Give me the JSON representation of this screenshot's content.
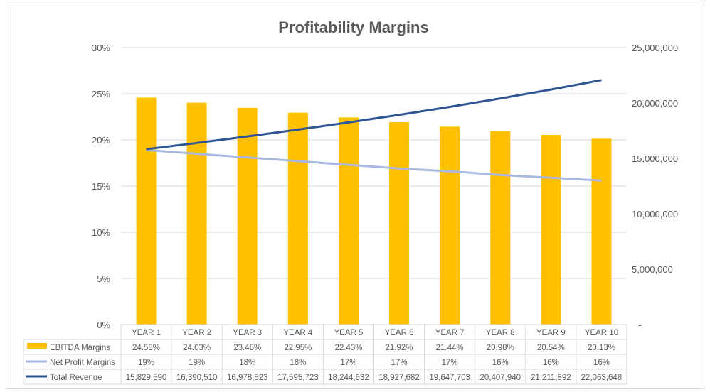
{
  "chart_data": {
    "type": "bar",
    "title": "Profitability Margins",
    "categories": [
      "YEAR 1",
      "YEAR 2",
      "YEAR 3",
      "YEAR 4",
      "YEAR 5",
      "YEAR 6",
      "YEAR 7",
      "YEAR 8",
      "YEAR 9",
      "YEAR 10"
    ],
    "left_axis": {
      "ylim": [
        0,
        30
      ],
      "ticks": [
        "0%",
        "5%",
        "10%",
        "15%",
        "20%",
        "25%",
        "30%"
      ]
    },
    "right_axis": {
      "ylim": [
        0,
        25000000
      ],
      "ticks": [
        "-",
        "5,000,000",
        "10,000,000",
        "15,000,000",
        "20,000,000",
        "25,000,000"
      ]
    },
    "grid": true,
    "legend": "data-table",
    "series": [
      {
        "name": "EBITDA Margins",
        "type": "bar",
        "axis": "left",
        "color": "#FFC000",
        "values": [
          24.58,
          24.03,
          23.48,
          22.95,
          22.43,
          21.92,
          21.44,
          20.98,
          20.54,
          20.13
        ],
        "labels": [
          "24.58%",
          "24.03%",
          "23.48%",
          "22.95%",
          "22.43%",
          "21.92%",
          "21.44%",
          "20.98%",
          "20.54%",
          "20.13%"
        ]
      },
      {
        "name": "Net Profit Margins",
        "type": "line",
        "axis": "left",
        "color": "#A9B8E0",
        "values": [
          18.9,
          18.5,
          18.1,
          17.7,
          17.3,
          16.9,
          16.6,
          16.2,
          15.9,
          15.6
        ],
        "labels": [
          "19%",
          "19%",
          "18%",
          "18%",
          "17%",
          "17%",
          "17%",
          "16%",
          "16%",
          "16%"
        ]
      },
      {
        "name": "Total Revenue",
        "type": "line",
        "axis": "right",
        "color": "#2F5597",
        "values": [
          15829590,
          16390510,
          16978523,
          17595723,
          18244632,
          18927682,
          19647703,
          20407940,
          21211892,
          22063648
        ],
        "labels": [
          "15,829,590",
          "16,390,510",
          "16,978,523",
          "17,595,723",
          "18,244,632",
          "18,927,682",
          "19,647,703",
          "20,407,940",
          "21,211,892",
          "22,063,648"
        ]
      }
    ]
  }
}
